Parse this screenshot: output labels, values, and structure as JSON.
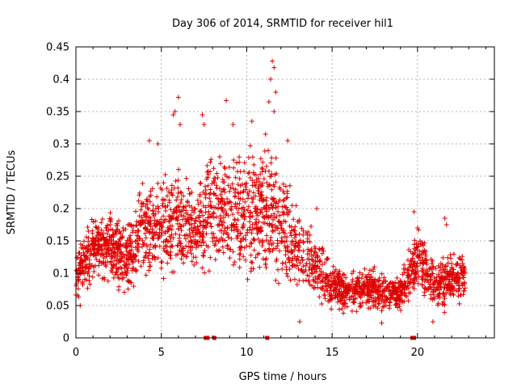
{
  "chart_data": {
    "type": "scatter",
    "title": "Day 306 of 2014, SRMTID for receiver hil1",
    "xlabel": "GPS time / hours",
    "ylabel": "SRMTID / TECUs",
    "xlim": [
      0,
      24.5
    ],
    "ylim": [
      0,
      0.45
    ],
    "xticks": [
      0,
      5,
      10,
      15,
      20
    ],
    "yticks": [
      0,
      0.05,
      0.1,
      0.15,
      0.2,
      0.25,
      0.3,
      0.35,
      0.4,
      0.45
    ],
    "ytick_labels": [
      "0",
      "0.05",
      "0.1",
      "0.15",
      "0.2",
      "0.25",
      "0.3",
      "0.35",
      "0.4",
      "0.45"
    ],
    "grid": true,
    "marker": "+",
    "color": "#e00000",
    "series": [
      {
        "name": "SRMTID",
        "envelope": [
          {
            "x": 0.0,
            "mean": 0.1,
            "spread": 0.04
          },
          {
            "x": 1.0,
            "mean": 0.14,
            "spread": 0.05
          },
          {
            "x": 2.0,
            "mean": 0.14,
            "spread": 0.05
          },
          {
            "x": 3.0,
            "mean": 0.12,
            "spread": 0.05
          },
          {
            "x": 4.0,
            "mean": 0.17,
            "spread": 0.07
          },
          {
            "x": 5.0,
            "mean": 0.17,
            "spread": 0.08
          },
          {
            "x": 6.0,
            "mean": 0.18,
            "spread": 0.09
          },
          {
            "x": 7.0,
            "mean": 0.16,
            "spread": 0.06
          },
          {
            "x": 8.0,
            "mean": 0.2,
            "spread": 0.09
          },
          {
            "x": 9.0,
            "mean": 0.19,
            "spread": 0.09
          },
          {
            "x": 10.0,
            "mean": 0.19,
            "spread": 0.09
          },
          {
            "x": 11.0,
            "mean": 0.19,
            "spread": 0.1
          },
          {
            "x": 12.0,
            "mean": 0.18,
            "spread": 0.09
          },
          {
            "x": 13.0,
            "mean": 0.14,
            "spread": 0.06
          },
          {
            "x": 14.0,
            "mean": 0.11,
            "spread": 0.05
          },
          {
            "x": 15.0,
            "mean": 0.08,
            "spread": 0.04
          },
          {
            "x": 16.0,
            "mean": 0.07,
            "spread": 0.03
          },
          {
            "x": 17.0,
            "mean": 0.08,
            "spread": 0.03
          },
          {
            "x": 18.0,
            "mean": 0.07,
            "spread": 0.03
          },
          {
            "x": 19.0,
            "mean": 0.07,
            "spread": 0.03
          },
          {
            "x": 20.0,
            "mean": 0.12,
            "spread": 0.05
          },
          {
            "x": 21.0,
            "mean": 0.08,
            "spread": 0.04
          },
          {
            "x": 22.0,
            "mean": 0.09,
            "spread": 0.04
          },
          {
            "x": 22.8,
            "mean": 0.1,
            "spread": 0.04
          }
        ],
        "highlights": [
          {
            "x": 11.5,
            "y": 0.428
          },
          {
            "x": 11.6,
            "y": 0.418
          },
          {
            "x": 11.4,
            "y": 0.4
          },
          {
            "x": 11.7,
            "y": 0.38
          },
          {
            "x": 11.3,
            "y": 0.365
          },
          {
            "x": 11.6,
            "y": 0.35
          },
          {
            "x": 6.0,
            "y": 0.372
          },
          {
            "x": 5.8,
            "y": 0.35
          },
          {
            "x": 5.7,
            "y": 0.345
          },
          {
            "x": 6.1,
            "y": 0.33
          },
          {
            "x": 8.8,
            "y": 0.367
          },
          {
            "x": 7.4,
            "y": 0.345
          },
          {
            "x": 7.5,
            "y": 0.33
          },
          {
            "x": 4.3,
            "y": 0.305
          },
          {
            "x": 4.8,
            "y": 0.3
          },
          {
            "x": 9.2,
            "y": 0.33
          },
          {
            "x": 10.3,
            "y": 0.335
          },
          {
            "x": 11.1,
            "y": 0.315
          },
          {
            "x": 12.4,
            "y": 0.305
          },
          {
            "x": 19.8,
            "y": 0.195
          },
          {
            "x": 20.0,
            "y": 0.17
          },
          {
            "x": 21.6,
            "y": 0.185
          },
          {
            "x": 21.7,
            "y": 0.175
          },
          {
            "x": 14.1,
            "y": 0.2
          },
          {
            "x": 0.25,
            "y": 0.05
          },
          {
            "x": 13.1,
            "y": 0.025
          },
          {
            "x": 17.9,
            "y": 0.023
          },
          {
            "x": 20.9,
            "y": 0.025
          }
        ],
        "zero_markers": [
          7.6,
          7.7,
          8.1,
          11.2,
          19.7,
          19.8
        ]
      }
    ]
  }
}
